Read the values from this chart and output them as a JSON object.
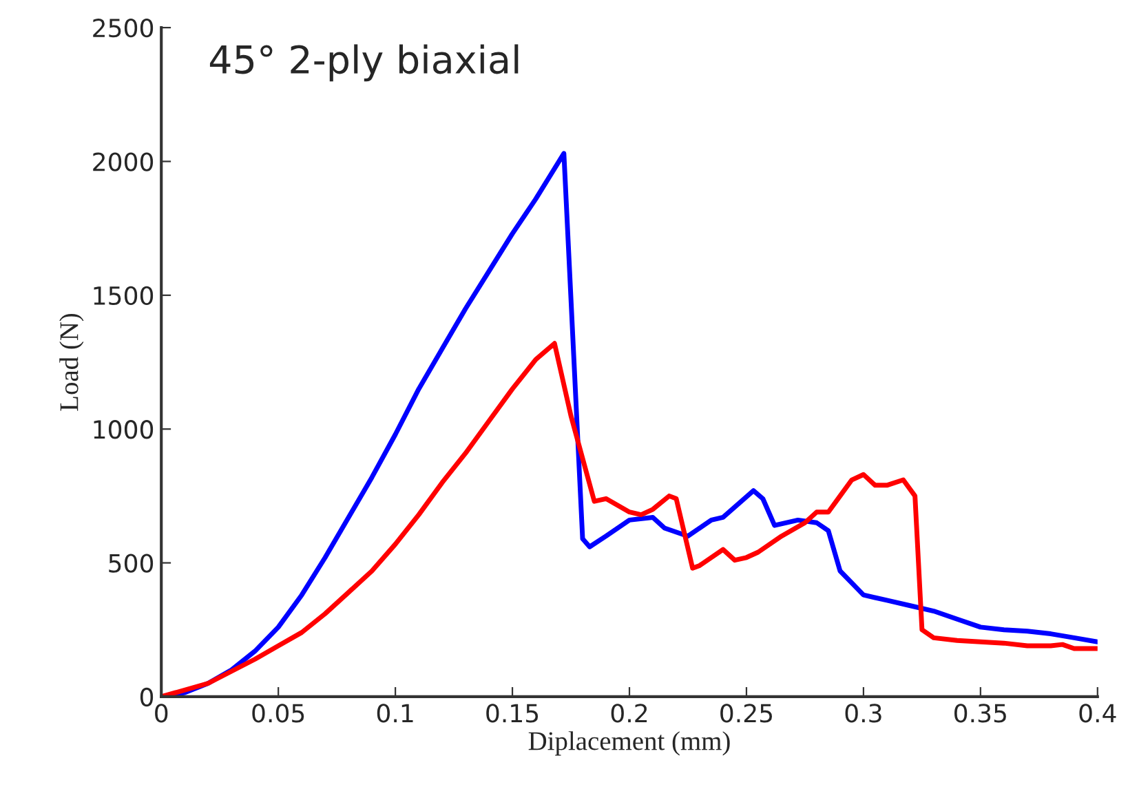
{
  "chart_data": {
    "type": "line",
    "title": "45° 2-ply biaxial",
    "xlabel": "Diplacement (mm)",
    "ylabel": "Load (N)",
    "xlim": [
      0,
      0.4
    ],
    "xticks": [
      0,
      0.05,
      0.1,
      0.15,
      0.2,
      0.25,
      0.3,
      0.35,
      0.4
    ],
    "ylim": [
      0,
      2500
    ],
    "yticks": [
      0,
      500,
      1000,
      1500,
      2000,
      2500
    ],
    "grid": false,
    "legend": false,
    "series": [
      {
        "color": "#0000ff",
        "x": [
          0,
          0.01,
          0.02,
          0.03,
          0.04,
          0.05,
          0.06,
          0.07,
          0.08,
          0.09,
          0.1,
          0.11,
          0.12,
          0.13,
          0.14,
          0.15,
          0.16,
          0.172,
          0.18,
          0.183,
          0.19,
          0.2,
          0.21,
          0.215,
          0.225,
          0.235,
          0.24,
          0.253,
          0.257,
          0.262,
          0.272,
          0.28,
          0.285,
          0.29,
          0.3,
          0.31,
          0.32,
          0.33,
          0.34,
          0.35,
          0.36,
          0.37,
          0.38,
          0.39,
          0.4
        ],
        "values": [
          0,
          15,
          50,
          100,
          170,
          260,
          380,
          520,
          670,
          820,
          980,
          1150,
          1300,
          1450,
          1590,
          1730,
          1860,
          2030,
          590,
          560,
          600,
          660,
          670,
          630,
          600,
          660,
          670,
          770,
          740,
          640,
          660,
          650,
          620,
          470,
          380,
          360,
          340,
          320,
          290,
          260,
          250,
          245,
          235,
          220,
          205
        ]
      },
      {
        "color": "#ff0000",
        "x": [
          0,
          0.02,
          0.03,
          0.04,
          0.05,
          0.06,
          0.07,
          0.08,
          0.09,
          0.1,
          0.11,
          0.12,
          0.13,
          0.14,
          0.15,
          0.16,
          0.168,
          0.175,
          0.185,
          0.19,
          0.2,
          0.205,
          0.21,
          0.217,
          0.22,
          0.227,
          0.23,
          0.24,
          0.245,
          0.25,
          0.255,
          0.265,
          0.275,
          0.28,
          0.285,
          0.29,
          0.295,
          0.3,
          0.305,
          0.31,
          0.317,
          0.322,
          0.325,
          0.33,
          0.34,
          0.35,
          0.36,
          0.37,
          0.38,
          0.385,
          0.39,
          0.4
        ],
        "values": [
          0,
          50,
          95,
          140,
          190,
          240,
          310,
          390,
          470,
          570,
          680,
          800,
          910,
          1030,
          1150,
          1260,
          1320,
          1050,
          730,
          740,
          690,
          680,
          700,
          750,
          740,
          480,
          490,
          550,
          510,
          520,
          540,
          600,
          650,
          690,
          690,
          750,
          810,
          830,
          790,
          790,
          810,
          750,
          250,
          220,
          210,
          205,
          200,
          190,
          190,
          195,
          180,
          180
        ]
      }
    ]
  }
}
